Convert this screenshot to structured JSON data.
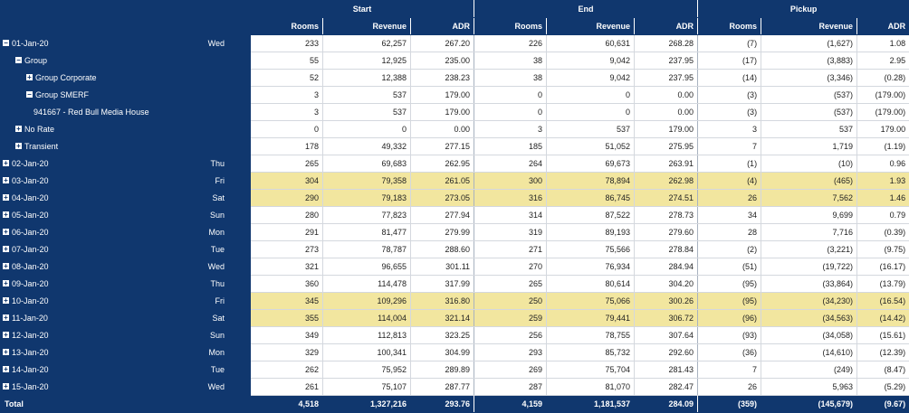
{
  "headers": {
    "groups": [
      "Start",
      "End",
      "Pickup"
    ],
    "cols": [
      "Rooms",
      "Revenue",
      "ADR",
      "Rooms",
      "Revenue",
      "ADR",
      "Rooms",
      "Revenue",
      "ADR"
    ]
  },
  "rows": [
    {
      "label": "01-Jan-20",
      "day": "Wed",
      "level": 0,
      "icon": "minus",
      "hl": false,
      "v": [
        "233",
        "62,257",
        "267.20",
        "226",
        "60,631",
        "268.28",
        "(7)",
        "(1,627)",
        "1.08"
      ]
    },
    {
      "label": "Group",
      "day": "",
      "level": 1,
      "icon": "minus",
      "hl": false,
      "v": [
        "55",
        "12,925",
        "235.00",
        "38",
        "9,042",
        "237.95",
        "(17)",
        "(3,883)",
        "2.95"
      ]
    },
    {
      "label": "Group Corporate",
      "day": "",
      "level": 2,
      "icon": "plus",
      "hl": false,
      "v": [
        "52",
        "12,388",
        "238.23",
        "38",
        "9,042",
        "237.95",
        "(14)",
        "(3,346)",
        "(0.28)"
      ]
    },
    {
      "label": "Group SMERF",
      "day": "",
      "level": 2,
      "icon": "minus",
      "hl": false,
      "v": [
        "3",
        "537",
        "179.00",
        "0",
        "0",
        "0.00",
        "(3)",
        "(537)",
        "(179.00)"
      ]
    },
    {
      "label": "941667 - Red Bull Media House",
      "day": "",
      "level": 3,
      "icon": "",
      "hl": false,
      "v": [
        "3",
        "537",
        "179.00",
        "0",
        "0",
        "0.00",
        "(3)",
        "(537)",
        "(179.00)"
      ]
    },
    {
      "label": "No Rate",
      "day": "",
      "level": 1,
      "icon": "plus",
      "hl": false,
      "v": [
        "0",
        "0",
        "0.00",
        "3",
        "537",
        "179.00",
        "3",
        "537",
        "179.00"
      ]
    },
    {
      "label": "Transient",
      "day": "",
      "level": 1,
      "icon": "plus",
      "hl": false,
      "v": [
        "178",
        "49,332",
        "277.15",
        "185",
        "51,052",
        "275.95",
        "7",
        "1,719",
        "(1.19)"
      ]
    },
    {
      "label": "02-Jan-20",
      "day": "Thu",
      "level": 0,
      "icon": "plus",
      "hl": false,
      "v": [
        "265",
        "69,683",
        "262.95",
        "264",
        "69,673",
        "263.91",
        "(1)",
        "(10)",
        "0.96"
      ]
    },
    {
      "label": "03-Jan-20",
      "day": "Fri",
      "level": 0,
      "icon": "plus",
      "hl": true,
      "v": [
        "304",
        "79,358",
        "261.05",
        "300",
        "78,894",
        "262.98",
        "(4)",
        "(465)",
        "1.93"
      ]
    },
    {
      "label": "04-Jan-20",
      "day": "Sat",
      "level": 0,
      "icon": "plus",
      "hl": true,
      "v": [
        "290",
        "79,183",
        "273.05",
        "316",
        "86,745",
        "274.51",
        "26",
        "7,562",
        "1.46"
      ]
    },
    {
      "label": "05-Jan-20",
      "day": "Sun",
      "level": 0,
      "icon": "plus",
      "hl": false,
      "v": [
        "280",
        "77,823",
        "277.94",
        "314",
        "87,522",
        "278.73",
        "34",
        "9,699",
        "0.79"
      ]
    },
    {
      "label": "06-Jan-20",
      "day": "Mon",
      "level": 0,
      "icon": "plus",
      "hl": false,
      "v": [
        "291",
        "81,477",
        "279.99",
        "319",
        "89,193",
        "279.60",
        "28",
        "7,716",
        "(0.39)"
      ]
    },
    {
      "label": "07-Jan-20",
      "day": "Tue",
      "level": 0,
      "icon": "plus",
      "hl": false,
      "v": [
        "273",
        "78,787",
        "288.60",
        "271",
        "75,566",
        "278.84",
        "(2)",
        "(3,221)",
        "(9.75)"
      ]
    },
    {
      "label": "08-Jan-20",
      "day": "Wed",
      "level": 0,
      "icon": "plus",
      "hl": false,
      "v": [
        "321",
        "96,655",
        "301.11",
        "270",
        "76,934",
        "284.94",
        "(51)",
        "(19,722)",
        "(16.17)"
      ]
    },
    {
      "label": "09-Jan-20",
      "day": "Thu",
      "level": 0,
      "icon": "plus",
      "hl": false,
      "v": [
        "360",
        "114,478",
        "317.99",
        "265",
        "80,614",
        "304.20",
        "(95)",
        "(33,864)",
        "(13.79)"
      ]
    },
    {
      "label": "10-Jan-20",
      "day": "Fri",
      "level": 0,
      "icon": "plus",
      "hl": true,
      "v": [
        "345",
        "109,296",
        "316.80",
        "250",
        "75,066",
        "300.26",
        "(95)",
        "(34,230)",
        "(16.54)"
      ]
    },
    {
      "label": "11-Jan-20",
      "day": "Sat",
      "level": 0,
      "icon": "plus",
      "hl": true,
      "v": [
        "355",
        "114,004",
        "321.14",
        "259",
        "79,441",
        "306.72",
        "(96)",
        "(34,563)",
        "(14.42)"
      ]
    },
    {
      "label": "12-Jan-20",
      "day": "Sun",
      "level": 0,
      "icon": "plus",
      "hl": false,
      "v": [
        "349",
        "112,813",
        "323.25",
        "256",
        "78,755",
        "307.64",
        "(93)",
        "(34,058)",
        "(15.61)"
      ]
    },
    {
      "label": "13-Jan-20",
      "day": "Mon",
      "level": 0,
      "icon": "plus",
      "hl": false,
      "v": [
        "329",
        "100,341",
        "304.99",
        "293",
        "85,732",
        "292.60",
        "(36)",
        "(14,610)",
        "(12.39)"
      ]
    },
    {
      "label": "14-Jan-20",
      "day": "Tue",
      "level": 0,
      "icon": "plus",
      "hl": false,
      "v": [
        "262",
        "75,952",
        "289.89",
        "269",
        "75,704",
        "281.43",
        "7",
        "(249)",
        "(8.47)"
      ]
    },
    {
      "label": "15-Jan-20",
      "day": "Wed",
      "level": 0,
      "icon": "plus",
      "hl": false,
      "v": [
        "261",
        "75,107",
        "287.77",
        "287",
        "81,070",
        "282.47",
        "26",
        "5,963",
        "(5.29)"
      ]
    }
  ],
  "total": {
    "label": "Total",
    "v": [
      "4,518",
      "1,327,216",
      "293.76",
      "4,159",
      "1,181,537",
      "284.09",
      "(359)",
      "(145,679)",
      "(9.67)"
    ]
  },
  "colors": {
    "header": "#10376e",
    "highlight": "#f2e69f"
  }
}
